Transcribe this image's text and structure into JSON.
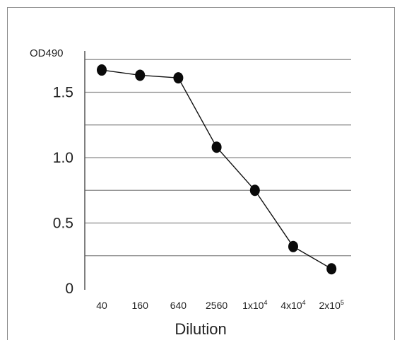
{
  "chart_data": {
    "type": "line",
    "title": "",
    "ylabel": "OD490",
    "xlabel": "Dilution",
    "ylim": [
      0,
      1.85
    ],
    "yticks": [
      {
        "value": 0,
        "label": "0"
      },
      {
        "value": 0.5,
        "label": "0.5"
      },
      {
        "value": 1.0,
        "label": "1.0"
      },
      {
        "value": 1.5,
        "label": "1.5"
      }
    ],
    "grid_values": [
      0.25,
      0.5,
      0.75,
      1.0,
      1.25,
      1.5,
      1.75
    ],
    "grid": true,
    "categories": [
      {
        "base": "40",
        "sup": ""
      },
      {
        "base": "160",
        "sup": ""
      },
      {
        "base": "640",
        "sup": ""
      },
      {
        "base": "2560",
        "sup": ""
      },
      {
        "base": "1x10",
        "sup": "4"
      },
      {
        "base": "4x10",
        "sup": "4"
      },
      {
        "base": "2x10",
        "sup": "5"
      }
    ],
    "series": [
      {
        "values": [
          1.67,
          1.63,
          1.61,
          1.08,
          0.75,
          0.32,
          0.15
        ]
      }
    ],
    "colors": {
      "line": "#111111",
      "point": "#0a0a0a",
      "grid": "#8a8a8a"
    }
  }
}
